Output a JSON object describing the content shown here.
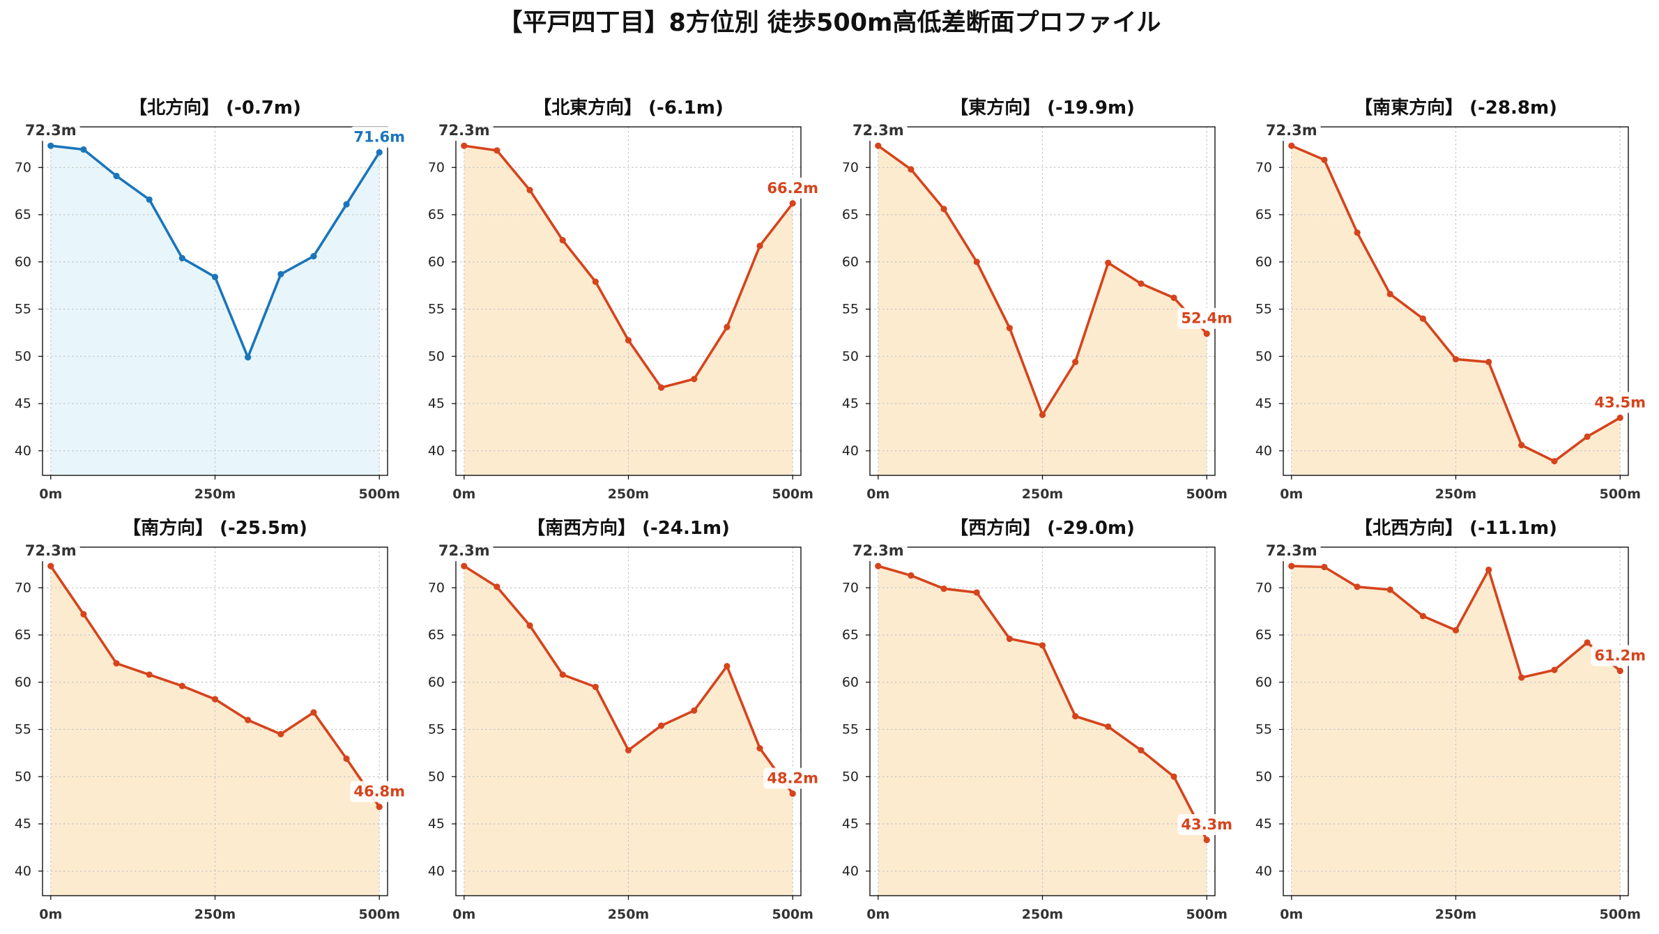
{
  "title": "【平戸四丁目】8方位別 徒歩500m高低差断面プロファイル",
  "chart_data": [
    {
      "type": "area",
      "title": "【北方向】 (-0.7m)",
      "x": [
        0,
        50,
        100,
        150,
        200,
        250,
        300,
        350,
        400,
        450,
        500
      ],
      "y": [
        72.3,
        71.9,
        69.1,
        66.6,
        60.4,
        58.4,
        49.9,
        58.7,
        60.6,
        66.1,
        71.6
      ],
      "xlim": [
        -12.5,
        512.5
      ],
      "ylim": [
        37.4,
        74.3
      ],
      "xticks": [
        0,
        250,
        500
      ],
      "xtick_labels": [
        "0m",
        "250m",
        "500m"
      ],
      "yticks": [
        40,
        45,
        50,
        55,
        60,
        65,
        70
      ],
      "start_label": "72.3m",
      "end_label": "71.6m",
      "color": "#1a75bb",
      "fill": "#e8f6fb",
      "grid": true
    },
    {
      "type": "area",
      "title": "【北東方向】 (-6.1m)",
      "x": [
        0,
        50,
        100,
        150,
        200,
        250,
        300,
        350,
        400,
        450,
        500
      ],
      "y": [
        72.3,
        71.8,
        67.6,
        62.3,
        57.9,
        51.7,
        46.7,
        47.6,
        53.1,
        61.7,
        66.2
      ],
      "xlim": [
        -12.5,
        512.5
      ],
      "ylim": [
        37.4,
        74.3
      ],
      "xticks": [
        0,
        250,
        500
      ],
      "xtick_labels": [
        "0m",
        "250m",
        "500m"
      ],
      "yticks": [
        40,
        45,
        50,
        55,
        60,
        65,
        70
      ],
      "start_label": "72.3m",
      "end_label": "66.2m",
      "color": "#d5441c",
      "fill": "#fdebd0",
      "grid": true
    },
    {
      "type": "area",
      "title": "【東方向】 (-19.9m)",
      "x": [
        0,
        50,
        100,
        150,
        200,
        250,
        300,
        350,
        400,
        450,
        500
      ],
      "y": [
        72.3,
        69.8,
        65.6,
        60.0,
        53.0,
        43.8,
        49.4,
        59.9,
        57.7,
        56.2,
        52.4
      ],
      "xlim": [
        -12.5,
        512.5
      ],
      "ylim": [
        37.4,
        74.3
      ],
      "xticks": [
        0,
        250,
        500
      ],
      "xtick_labels": [
        "0m",
        "250m",
        "500m"
      ],
      "yticks": [
        40,
        45,
        50,
        55,
        60,
        65,
        70
      ],
      "start_label": "72.3m",
      "end_label": "52.4m",
      "color": "#d5441c",
      "fill": "#fdebd0",
      "grid": true
    },
    {
      "type": "area",
      "title": "【南東方向】 (-28.8m)",
      "x": [
        0,
        50,
        100,
        150,
        200,
        250,
        300,
        350,
        400,
        450,
        500
      ],
      "y": [
        72.3,
        70.8,
        63.1,
        56.6,
        54.0,
        49.7,
        49.4,
        40.6,
        38.9,
        41.5,
        43.5
      ],
      "xlim": [
        -12.5,
        512.5
      ],
      "ylim": [
        37.4,
        74.3
      ],
      "xticks": [
        0,
        250,
        500
      ],
      "xtick_labels": [
        "0m",
        "250m",
        "500m"
      ],
      "yticks": [
        40,
        45,
        50,
        55,
        60,
        65,
        70
      ],
      "start_label": "72.3m",
      "end_label": "43.5m",
      "color": "#d5441c",
      "fill": "#fdebd0",
      "grid": true
    },
    {
      "type": "area",
      "title": "【南方向】 (-25.5m)",
      "x": [
        0,
        50,
        100,
        150,
        200,
        250,
        300,
        350,
        400,
        450,
        500
      ],
      "y": [
        72.3,
        67.2,
        62.0,
        60.8,
        59.6,
        58.2,
        56.0,
        54.5,
        56.8,
        51.9,
        46.8
      ],
      "xlim": [
        -12.5,
        512.5
      ],
      "ylim": [
        37.4,
        74.3
      ],
      "xticks": [
        0,
        250,
        500
      ],
      "xtick_labels": [
        "0m",
        "250m",
        "500m"
      ],
      "yticks": [
        40,
        45,
        50,
        55,
        60,
        65,
        70
      ],
      "start_label": "72.3m",
      "end_label": "46.8m",
      "color": "#d5441c",
      "fill": "#fdebd0",
      "grid": true
    },
    {
      "type": "area",
      "title": "【南西方向】 (-24.1m)",
      "x": [
        0,
        50,
        100,
        150,
        200,
        250,
        300,
        350,
        400,
        450,
        500
      ],
      "y": [
        72.3,
        70.1,
        66.0,
        60.8,
        59.5,
        52.8,
        55.4,
        57.0,
        61.7,
        53.0,
        48.2
      ],
      "xlim": [
        -12.5,
        512.5
      ],
      "ylim": [
        37.4,
        74.3
      ],
      "xticks": [
        0,
        250,
        500
      ],
      "xtick_labels": [
        "0m",
        "250m",
        "500m"
      ],
      "yticks": [
        40,
        45,
        50,
        55,
        60,
        65,
        70
      ],
      "start_label": "72.3m",
      "end_label": "48.2m",
      "color": "#d5441c",
      "fill": "#fdebd0",
      "grid": true
    },
    {
      "type": "area",
      "title": "【西方向】 (-29.0m)",
      "x": [
        0,
        50,
        100,
        150,
        200,
        250,
        300,
        350,
        400,
        450,
        500
      ],
      "y": [
        72.3,
        71.3,
        69.9,
        69.5,
        64.6,
        63.9,
        56.4,
        55.3,
        52.8,
        50.0,
        43.3
      ],
      "xlim": [
        -12.5,
        512.5
      ],
      "ylim": [
        37.4,
        74.3
      ],
      "xticks": [
        0,
        250,
        500
      ],
      "xtick_labels": [
        "0m",
        "250m",
        "500m"
      ],
      "yticks": [
        40,
        45,
        50,
        55,
        60,
        65,
        70
      ],
      "start_label": "72.3m",
      "end_label": "43.3m",
      "color": "#d5441c",
      "fill": "#fdebd0",
      "grid": true
    },
    {
      "type": "area",
      "title": "【北西方向】 (-11.1m)",
      "x": [
        0,
        50,
        100,
        150,
        200,
        250,
        300,
        350,
        400,
        450,
        500
      ],
      "y": [
        72.3,
        72.2,
        70.1,
        69.8,
        67.0,
        65.5,
        71.9,
        60.5,
        61.3,
        64.2,
        61.2
      ],
      "xlim": [
        -12.5,
        512.5
      ],
      "ylim": [
        37.4,
        74.3
      ],
      "xticks": [
        0,
        250,
        500
      ],
      "xtick_labels": [
        "0m",
        "250m",
        "500m"
      ],
      "yticks": [
        40,
        45,
        50,
        55,
        60,
        65,
        70
      ],
      "start_label": "72.3m",
      "end_label": "61.2m",
      "color": "#d5441c",
      "fill": "#fdebd0",
      "grid": true
    }
  ]
}
